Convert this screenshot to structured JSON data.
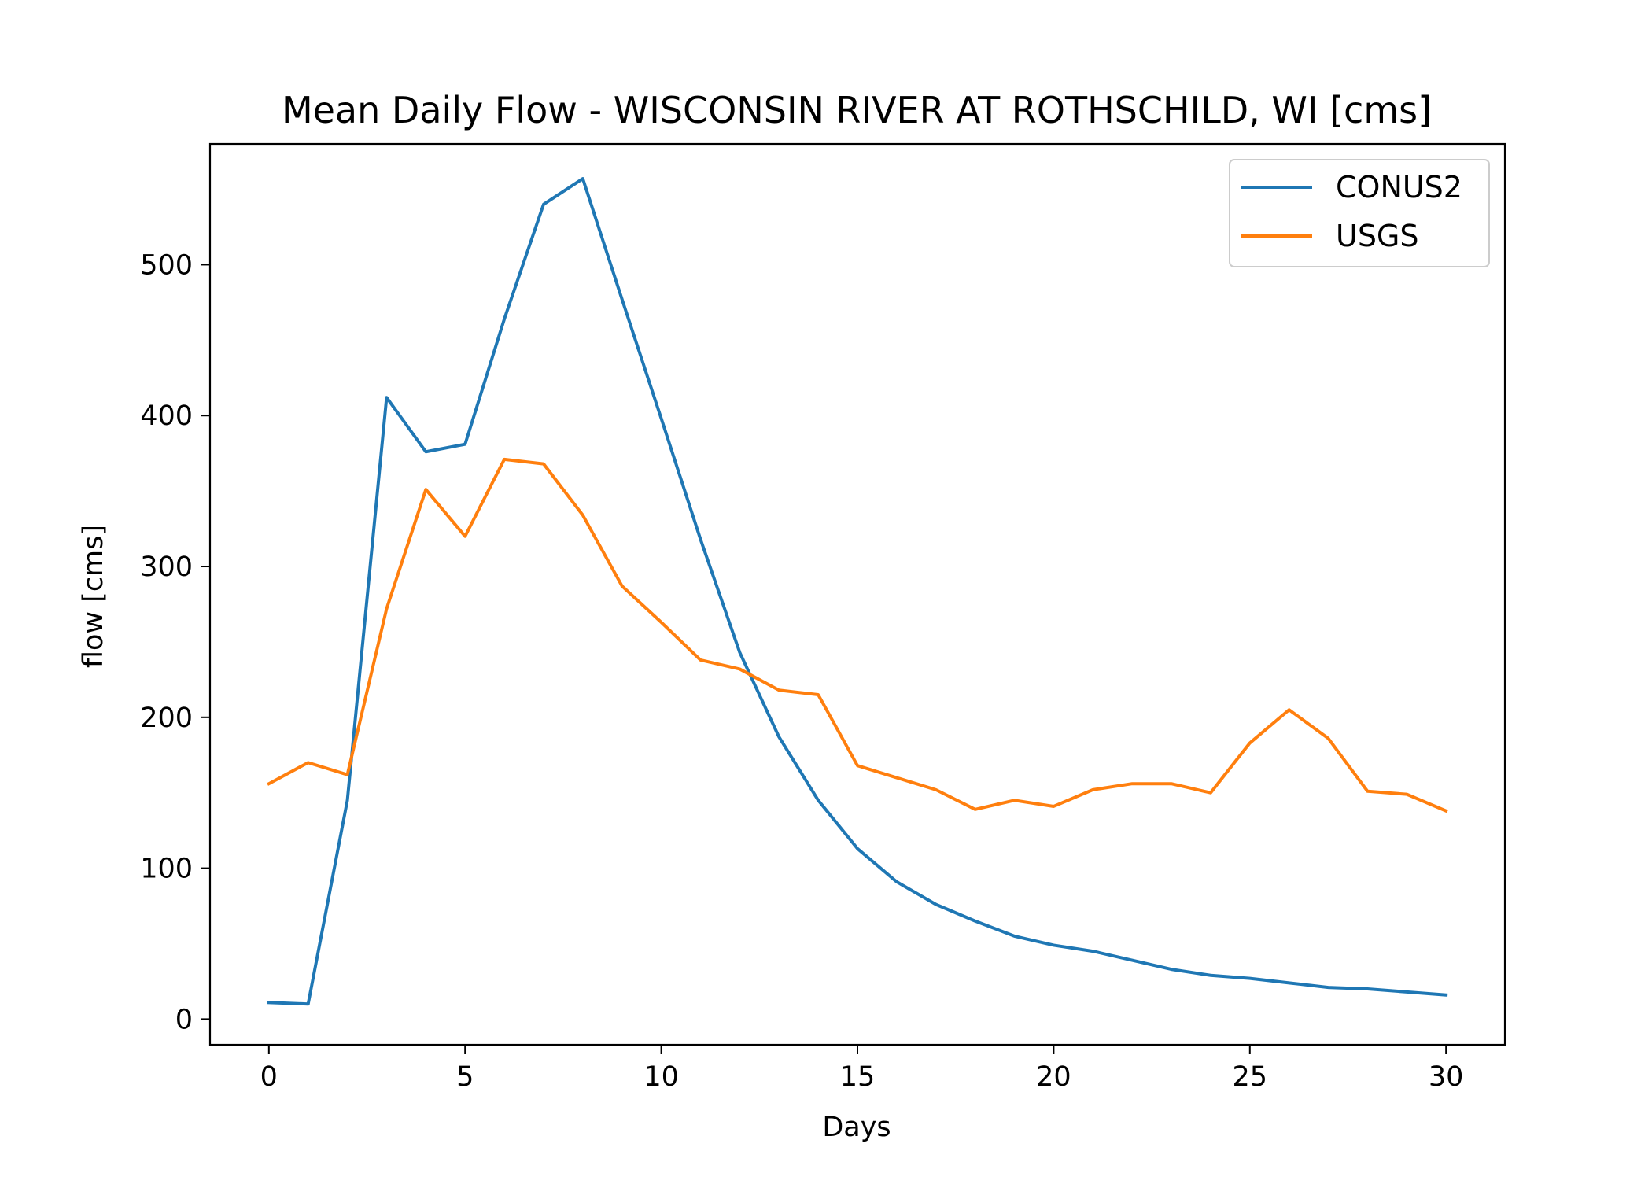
{
  "chart_data": {
    "type": "line",
    "title": "Mean Daily Flow - WISCONSIN RIVER AT ROTHSCHILD, WI [cms]",
    "xlabel": "Days",
    "ylabel": "flow [cms]",
    "xlim": [
      -1.5,
      31.5
    ],
    "ylim": [
      -17,
      580
    ],
    "xticks": [
      0,
      5,
      10,
      15,
      20,
      25,
      30
    ],
    "yticks": [
      0,
      100,
      200,
      300,
      400,
      500
    ],
    "grid": false,
    "legend_position": "top-right",
    "x": [
      0,
      1,
      2,
      3,
      4,
      5,
      6,
      7,
      8,
      9,
      10,
      11,
      12,
      13,
      14,
      15,
      16,
      17,
      18,
      19,
      20,
      21,
      22,
      23,
      24,
      25,
      26,
      27,
      28,
      29,
      30
    ],
    "series": [
      {
        "name": "CONUS2",
        "color": "#1f77b4",
        "values": [
          11,
          10,
          145,
          412,
          376,
          381,
          464,
          540,
          557,
          477,
          398,
          318,
          243,
          187,
          145,
          113,
          91,
          76,
          65,
          55,
          49,
          45,
          39,
          33,
          29,
          27,
          24,
          21,
          20,
          18,
          16
        ]
      },
      {
        "name": "USGS",
        "color": "#ff7f0e",
        "values": [
          156,
          170,
          162,
          272,
          351,
          320,
          371,
          368,
          334,
          287,
          263,
          238,
          232,
          218,
          215,
          168,
          160,
          152,
          139,
          145,
          141,
          152,
          156,
          156,
          150,
          183,
          205,
          186,
          151,
          149,
          138
        ]
      }
    ]
  }
}
